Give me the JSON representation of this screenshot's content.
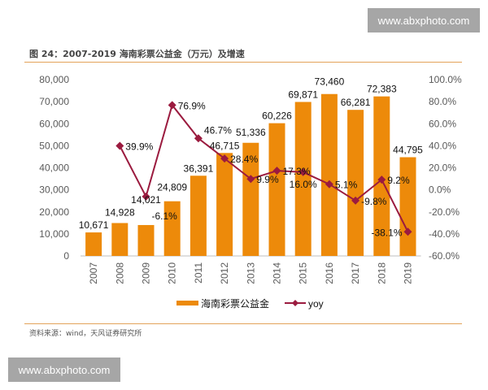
{
  "watermark": "www.abxphoto.com",
  "title": "图 24：2007-2019 海南彩票公益金（万元）及增速",
  "source": "资料来源：wind，天风证券研究所",
  "chart_data": {
    "type": "bar+line",
    "categories": [
      "2007",
      "2008",
      "2009",
      "2010",
      "2011",
      "2012",
      "2013",
      "2014",
      "2015",
      "2016",
      "2017",
      "2018",
      "2019"
    ],
    "series": [
      {
        "name": "海南彩票公益金",
        "type": "bar",
        "axis": "left",
        "color": "#ed8a0a",
        "values": [
          10671,
          14928,
          14021,
          24809,
          36391,
          46715,
          51336,
          60226,
          69871,
          73460,
          66281,
          72383,
          44795
        ],
        "labels": [
          "10,671",
          "14,928",
          "14,021",
          "24,809",
          "36,391",
          "46,715",
          "51,336",
          "60,226",
          "69,871",
          "73,460",
          "66,281",
          "72,383",
          "44,795"
        ]
      },
      {
        "name": "yoy",
        "type": "line",
        "axis": "right",
        "color": "#9b1b3f",
        "values": [
          null,
          39.9,
          -6.1,
          76.9,
          46.7,
          28.4,
          9.9,
          17.3,
          16.0,
          5.1,
          -9.8,
          9.2,
          -38.1
        ],
        "labels": [
          "",
          "39.9%",
          "-6.1%",
          "76.9%",
          "46.7%",
          "28.4%",
          "9.9%",
          "17.3%",
          "16.0%",
          "5.1%",
          "-9.8%",
          "9.2%",
          "-38.1%"
        ]
      }
    ],
    "ylim_left": [
      0,
      80000
    ],
    "yticks_left": [
      "0",
      "10,000",
      "20,000",
      "30,000",
      "40,000",
      "50,000",
      "60,000",
      "70,000",
      "80,000"
    ],
    "ylim_right": [
      -60,
      100
    ],
    "yticks_right": [
      "-60.0%",
      "-40.0%",
      "-20.0%",
      "0.0%",
      "20.0%",
      "40.0%",
      "60.0%",
      "80.0%",
      "100.0%"
    ],
    "legend_position": "bottom",
    "grid": false
  }
}
